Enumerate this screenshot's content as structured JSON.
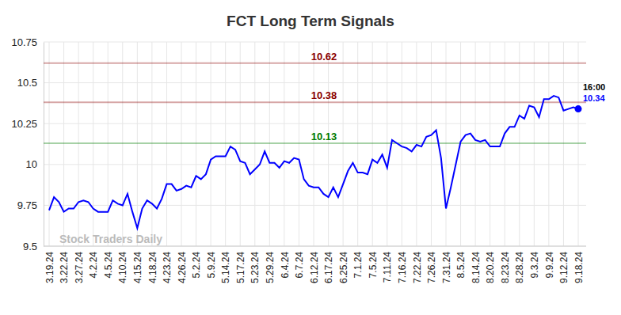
{
  "chart_data": {
    "type": "line",
    "title": "FCT Long Term Signals",
    "categories": [
      "3.19.24",
      null,
      null,
      "3.22.24",
      null,
      null,
      "3.27.24",
      null,
      null,
      "4.2.24",
      null,
      null,
      "4.5.24",
      null,
      null,
      "4.10.24",
      null,
      null,
      "4.15.24",
      null,
      null,
      "4.18.24",
      null,
      null,
      "4.23.24",
      null,
      null,
      "4.26.24",
      null,
      null,
      "5.2.24",
      null,
      null,
      "5.9.24",
      null,
      null,
      "5.14.24",
      null,
      null,
      "5.17.24",
      null,
      null,
      "5.23.24",
      null,
      null,
      "5.29.24",
      null,
      null,
      "6.4.24",
      null,
      null,
      "6.7.24",
      null,
      null,
      "6.12.24",
      null,
      null,
      "6.17.24",
      null,
      null,
      "6.25.24",
      null,
      null,
      "7.1.24",
      null,
      null,
      "7.5.24",
      null,
      null,
      "7.11.24",
      null,
      null,
      "7.16.24",
      null,
      null,
      "7.22.24",
      null,
      null,
      "7.26.24",
      null,
      null,
      "7.31.24",
      null,
      null,
      "8.5.24",
      null,
      null,
      "8.14.24",
      null,
      null,
      "8.20.24",
      null,
      null,
      "8.23.24",
      null,
      null,
      "8.28.24",
      null,
      null,
      "9.3.24",
      null,
      null,
      "9.9.24",
      null,
      null,
      "9.12.24",
      null,
      null,
      "9.18.24"
    ],
    "values": [
      9.72,
      9.8,
      9.77,
      9.71,
      9.73,
      9.73,
      9.77,
      9.78,
      9.77,
      9.73,
      9.71,
      9.71,
      9.71,
      9.78,
      9.76,
      9.75,
      9.82,
      9.71,
      9.61,
      9.73,
      9.78,
      9.76,
      9.73,
      9.79,
      9.88,
      9.88,
      9.84,
      9.85,
      9.87,
      9.86,
      9.93,
      9.91,
      9.94,
      10.03,
      10.05,
      10.05,
      10.05,
      10.11,
      10.09,
      10.02,
      10.01,
      9.94,
      9.97,
      10.0,
      10.08,
      10.01,
      10.01,
      9.98,
      10.02,
      10.01,
      10.04,
      10.03,
      9.91,
      9.87,
      9.86,
      9.86,
      9.82,
      9.8,
      9.86,
      9.8,
      9.88,
      9.96,
      10.01,
      9.95,
      9.95,
      9.94,
      10.03,
      10.01,
      10.06,
      9.98,
      10.15,
      10.13,
      10.11,
      10.1,
      10.08,
      10.12,
      10.11,
      10.17,
      10.18,
      10.21,
      10.04,
      9.73,
      9.86,
      10.0,
      10.14,
      10.18,
      10.19,
      10.15,
      10.14,
      10.15,
      10.11,
      10.11,
      10.11,
      10.19,
      10.23,
      10.23,
      10.3,
      10.28,
      10.36,
      10.35,
      10.29,
      10.4,
      10.4,
      10.42,
      10.41,
      10.33,
      10.34,
      10.35,
      10.34
    ],
    "color": "#0000ff",
    "ylim": [
      9.5,
      10.75
    ],
    "yticks": [
      9.5,
      9.75,
      10,
      10.25,
      10.5,
      10.75
    ],
    "grid": true,
    "reference_lines": [
      {
        "value": 10.62,
        "color": "#8b0000"
      },
      {
        "value": 10.38,
        "color": "#8b0000"
      },
      {
        "value": 10.13,
        "color": "#007a00"
      }
    ],
    "watermark": "Stock Traders Daily",
    "end_label": "16:00"
  }
}
